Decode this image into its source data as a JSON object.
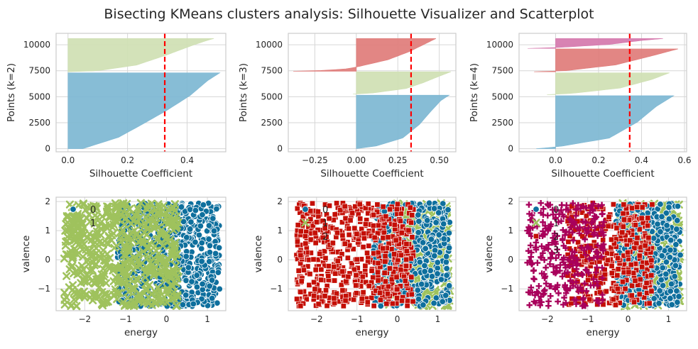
{
  "figure": {
    "title": "Bisecting KMeans clusters analysis: Silhouette Visualizer and Scatterplot"
  },
  "colors": {
    "c0": "#0e6f9d",
    "c1": "#9fc25d",
    "c2": "#c40f06",
    "c3": "#a8005b",
    "sil0": "#7db7d3",
    "sil1": "#cfe0b3",
    "sil2": "#e07c7a",
    "sil3": "#d578ad",
    "avg_line": "#ff0000",
    "grid": "#d6d6d6",
    "spine": "#cccccc"
  },
  "chart_data": [
    {
      "type": "area",
      "subtype": "silhouette",
      "k": 2,
      "xlabel": "Silhouette Coefficient",
      "ylabel": "Points (k=2)",
      "xlim": [
        -0.04,
        0.53
      ],
      "ylim": [
        -300,
        11100
      ],
      "xticks": [
        0.0,
        0.2,
        0.4
      ],
      "xtick_labels": [
        "0.0",
        "0.2",
        "0.4"
      ],
      "yticks": [
        0,
        2500,
        5000,
        7500,
        10000
      ],
      "ytick_labels": [
        "0",
        "2500",
        "5000",
        "7500",
        "10000"
      ],
      "average_silhouette": 0.325,
      "grid": true,
      "clusters": [
        {
          "label": "0",
          "start": 0,
          "end": 7300,
          "profile": [
            [
              0,
              0.05
            ],
            [
              0.15,
              0.17
            ],
            [
              0.3,
              0.24
            ],
            [
              0.5,
              0.33
            ],
            [
              0.7,
              0.41
            ],
            [
              0.9,
              0.47
            ],
            [
              1.0,
              0.51
            ]
          ]
        },
        {
          "label": "1",
          "start": 7400,
          "end": 10600,
          "profile": [
            [
              0,
              0.0
            ],
            [
              0.03,
              0.1
            ],
            [
              0.2,
              0.23
            ],
            [
              0.5,
              0.33
            ],
            [
              0.8,
              0.42
            ],
            [
              0.95,
              0.47
            ],
            [
              1.0,
              0.49
            ]
          ]
        }
      ]
    },
    {
      "type": "area",
      "subtype": "silhouette",
      "k": 3,
      "xlabel": "Silhouette Coefficient",
      "ylabel": "Points (k=3)",
      "xlim": [
        -0.41,
        0.6
      ],
      "ylim": [
        -300,
        11100
      ],
      "xticks": [
        -0.25,
        0.0,
        0.25,
        0.5
      ],
      "xtick_labels": [
        "−0.25",
        "0.00",
        "0.25",
        "0.50"
      ],
      "yticks": [
        0,
        2500,
        5000,
        7500,
        10000
      ],
      "ytick_labels": [
        "0",
        "2500",
        "5000",
        "7500",
        "10000"
      ],
      "average_silhouette": 0.33,
      "grid": true,
      "clusters": [
        {
          "label": "0",
          "start": 0,
          "end": 5150,
          "profile": [
            [
              0,
              0.0
            ],
            [
              0.05,
              0.12
            ],
            [
              0.2,
              0.28
            ],
            [
              0.45,
              0.38
            ],
            [
              0.7,
              0.45
            ],
            [
              0.9,
              0.51
            ],
            [
              1.0,
              0.56
            ]
          ]
        },
        {
          "label": "1",
          "start": 5250,
          "end": 7400,
          "profile": [
            [
              0,
              -0.02
            ],
            [
              0.05,
              0.1
            ],
            [
              0.25,
              0.3
            ],
            [
              0.5,
              0.4
            ],
            [
              0.8,
              0.5
            ],
            [
              1.0,
              0.57
            ]
          ]
        },
        {
          "label": "2",
          "start": 7450,
          "end": 10600,
          "profile": [
            [
              0,
              -0.38
            ],
            [
              0.03,
              -0.18
            ],
            [
              0.08,
              -0.05
            ],
            [
              0.15,
              0.02
            ],
            [
              0.35,
              0.19
            ],
            [
              0.6,
              0.32
            ],
            [
              0.85,
              0.42
            ],
            [
              1.0,
              0.48
            ]
          ]
        }
      ]
    },
    {
      "type": "area",
      "subtype": "silhouette",
      "k": 4,
      "xlabel": "Silhouette Coefficient",
      "ylabel": "Points (k=4)",
      "xlim": [
        -0.17,
        0.61
      ],
      "ylim": [
        -300,
        11100
      ],
      "xticks": [
        0.0,
        0.2,
        0.4,
        0.6
      ],
      "xtick_labels": [
        "0.0",
        "0.2",
        "0.4",
        "0.6"
      ],
      "yticks": [
        0,
        2500,
        5000,
        7500,
        10000
      ],
      "ytick_labels": [
        "0",
        "2500",
        "5000",
        "7500",
        "10000"
      ],
      "average_silhouette": 0.345,
      "grid": true,
      "clusters": [
        {
          "label": "0",
          "start": 0,
          "end": 5100,
          "profile": [
            [
              0,
              -0.09
            ],
            [
              0.04,
              0.02
            ],
            [
              0.2,
              0.25
            ],
            [
              0.5,
              0.38
            ],
            [
              0.8,
              0.47
            ],
            [
              1.0,
              0.55
            ]
          ]
        },
        {
          "label": "1",
          "start": 5200,
          "end": 7300,
          "profile": [
            [
              0,
              -0.04
            ],
            [
              0.06,
              0.08
            ],
            [
              0.3,
              0.3
            ],
            [
              0.7,
              0.45
            ],
            [
              1.0,
              0.53
            ]
          ]
        },
        {
          "label": "2",
          "start": 7400,
          "end": 9600,
          "profile": [
            [
              0,
              -0.1
            ],
            [
              0.05,
              0.05
            ],
            [
              0.3,
              0.28
            ],
            [
              0.7,
              0.45
            ],
            [
              1.0,
              0.57
            ]
          ]
        },
        {
          "label": "3",
          "start": 9650,
          "end": 10600,
          "profile": [
            [
              0,
              -0.13
            ],
            [
              0.1,
              0.02
            ],
            [
              0.4,
              0.25
            ],
            [
              0.8,
              0.4
            ],
            [
              1.0,
              0.5
            ]
          ]
        }
      ]
    },
    {
      "type": "scatter",
      "k": 2,
      "xlabel": "energy",
      "ylabel": "valence",
      "xlim": [
        -2.7,
        1.45
      ],
      "ylim": [
        -1.75,
        2.15
      ],
      "xticks": [
        -2,
        -1,
        0,
        1
      ],
      "xtick_labels": [
        "−2",
        "−1",
        "0",
        "1"
      ],
      "yticks": [
        -1,
        0,
        1,
        2
      ],
      "ytick_labels": [
        "−1",
        "0",
        "1",
        "2"
      ],
      "x_range": [
        -2.5,
        1.3
      ],
      "y_range": [
        -1.6,
        1.95
      ],
      "legend": [
        "0",
        "1"
      ],
      "legend_position": "upper-left",
      "grid": true,
      "clusters": [
        {
          "label": "0",
          "marker": "circle",
          "x_min": -1.2,
          "x_max": 1.3,
          "count": 720
        },
        {
          "label": "1",
          "marker": "x",
          "x_min": -2.5,
          "x_max": 0.3,
          "count": 560
        }
      ]
    },
    {
      "type": "scatter",
      "k": 3,
      "xlabel": "energy",
      "ylabel": "valence",
      "xlim": [
        -2.7,
        1.45
      ],
      "ylim": [
        -1.75,
        2.15
      ],
      "xticks": [
        -2,
        -1,
        0,
        1
      ],
      "xtick_labels": [
        "−2",
        "−1",
        "0",
        "1"
      ],
      "yticks": [
        -1,
        0,
        1,
        2
      ],
      "ytick_labels": [
        "−1",
        "0",
        "1",
        "2"
      ],
      "x_range": [
        -2.5,
        1.3
      ],
      "y_range": [
        -1.6,
        1.95
      ],
      "legend": [
        "0",
        "1",
        "2"
      ],
      "legend_position": "upper-left",
      "grid": true,
      "clusters": [
        {
          "label": "1",
          "marker": "x",
          "x_min": -0.3,
          "x_max": 1.3,
          "count": 330
        },
        {
          "label": "0",
          "marker": "circle",
          "x_min": -0.6,
          "x_max": 1.3,
          "count": 460
        },
        {
          "label": "2",
          "marker": "square",
          "x_min": -2.5,
          "x_max": 0.4,
          "count": 620
        }
      ]
    },
    {
      "type": "scatter",
      "k": 4,
      "xlabel": "energy",
      "ylabel": "valence",
      "xlim": [
        -2.7,
        1.45
      ],
      "ylim": [
        -1.75,
        2.15
      ],
      "xticks": [
        -2,
        -1,
        0,
        1
      ],
      "xtick_labels": [
        "−2",
        "−1",
        "0",
        "1"
      ],
      "yticks": [
        -1,
        0,
        1,
        2
      ],
      "ytick_labels": [
        "−1",
        "0",
        "1",
        "2"
      ],
      "x_range": [
        -2.5,
        1.3
      ],
      "y_range": [
        -1.6,
        1.95
      ],
      "legend": [
        "0",
        "1",
        "2",
        "3"
      ],
      "legend_position": "upper-left",
      "grid": true,
      "clusters": [
        {
          "label": "1",
          "marker": "x",
          "x_min": -0.2,
          "x_max": 1.3,
          "count": 330
        },
        {
          "label": "0",
          "marker": "circle",
          "x_min": -0.3,
          "x_max": 1.3,
          "count": 430
        },
        {
          "label": "2",
          "marker": "square",
          "x_min": -1.5,
          "x_max": 0.6,
          "count": 380
        },
        {
          "label": "3",
          "marker": "plus",
          "x_min": -2.5,
          "x_max": -0.6,
          "count": 300
        }
      ]
    }
  ]
}
